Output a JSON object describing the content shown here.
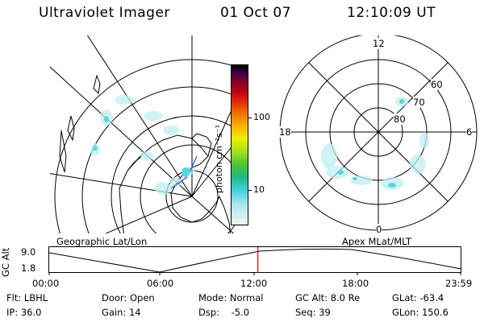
{
  "header": {
    "instrument": "Ultraviolet Imager",
    "date": "01 Oct 07",
    "time": "12:10:09 UT"
  },
  "colorbar": {
    "unit_label": "photon cm⁻²s⁻¹",
    "ticks": [
      "100",
      "10"
    ],
    "scale": "log",
    "colors": [
      "#f2f2f2",
      "#b0e8ee",
      "#40d0d8",
      "#20b888",
      "#50c830",
      "#a8e020",
      "#f0f000",
      "#f8b000",
      "#f07000",
      "#e02010",
      "#b80010",
      "#800030",
      "#400040",
      "#000000"
    ]
  },
  "left_map": {
    "caption": "Geographic Lat/Lon"
  },
  "right_map": {
    "caption": "Apex MLat/MLT",
    "mlt_labels": {
      "top": "12",
      "bottom": "0",
      "left": "18",
      "right": "6"
    },
    "lat_labels": [
      "60",
      "70",
      "80"
    ]
  },
  "timeline": {
    "y_title": "GC Alt",
    "y_ticks": [
      "9.0",
      "1.8"
    ],
    "x_ticks": [
      "00:00",
      "06:00",
      "12:00",
      "18:00",
      "23:59"
    ],
    "marker_time": "12:10",
    "marker_color": "#e00000"
  },
  "footer": {
    "row1": {
      "flt": "Flt: LBHL",
      "door": "Door: Open",
      "mode": "Mode: Normal",
      "gcalt": "GC Alt: 8.0 Re",
      "glat": "GLat: -63.4"
    },
    "row2": {
      "ip": "IP: 36.0",
      "gain": "Gain: 14",
      "dsp": "Dsp:    -5.0",
      "seq": "Seq: 39",
      "glon": "GLon: 150.6"
    }
  }
}
